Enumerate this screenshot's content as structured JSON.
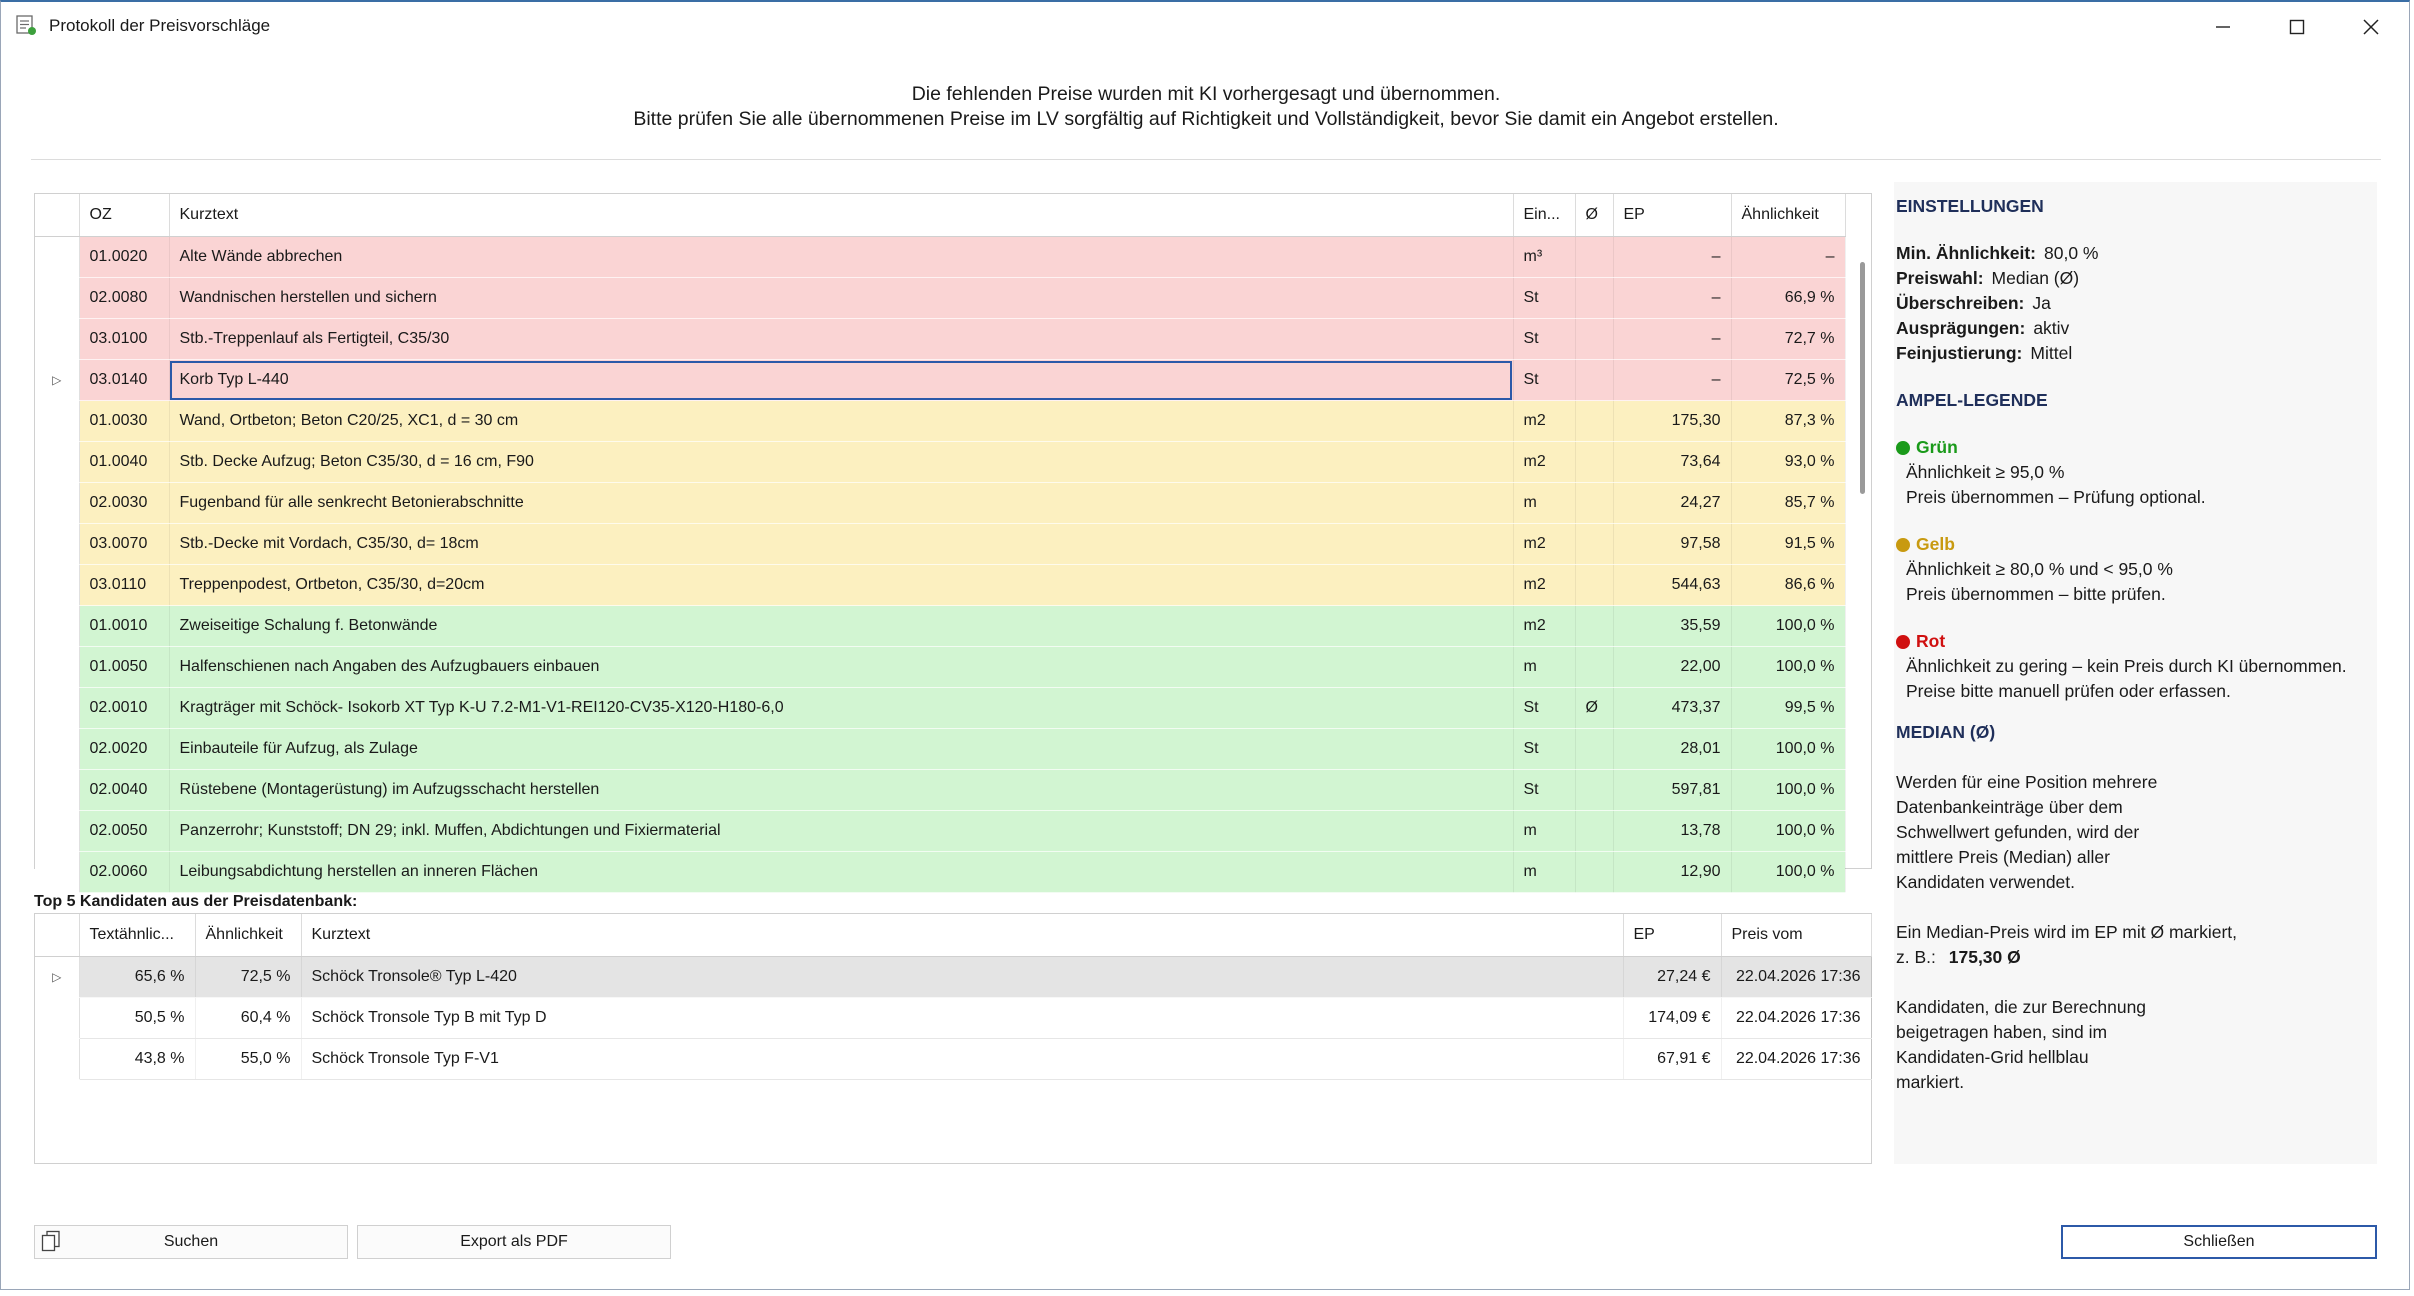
{
  "window": {
    "title": "Protokoll der Preisvorschläge"
  },
  "header": {
    "line1": "Die fehlenden Preise wurden mit KI vorhergesagt und übernommen.",
    "line2": "Bitte prüfen Sie alle übernommenen Preise im LV sorgfältig auf Richtigkeit und Vollständigkeit, bevor Sie damit ein Angebot erstellen."
  },
  "main_grid": {
    "columns": {
      "oz": "OZ",
      "kurztext": "Kurztext",
      "einheit": "Ein...",
      "median": "Ø",
      "ep": "EP",
      "aehnlichkeit": "Ähnlichkeit"
    },
    "rows": [
      {
        "status": "red",
        "oz": "01.0020",
        "kurztext": "Alte Wände abbrechen",
        "einheit": "m³",
        "median": "",
        "ep": "–",
        "aehnlichkeit": "–"
      },
      {
        "status": "red",
        "oz": "02.0080",
        "kurztext": "Wandnischen herstellen und sichern",
        "einheit": "St",
        "median": "",
        "ep": "–",
        "aehnlichkeit": "66,9 %"
      },
      {
        "status": "red",
        "oz": "03.0100",
        "kurztext": "Stb.-Treppenlauf als Fertigteil, C35/30",
        "einheit": "St",
        "median": "",
        "ep": "–",
        "aehnlichkeit": "72,7 %"
      },
      {
        "status": "red",
        "oz": "03.0140",
        "kurztext": "Korb Typ L-440",
        "einheit": "St",
        "median": "",
        "ep": "–",
        "aehnlichkeit": "72,5 %",
        "current": true
      },
      {
        "status": "yellow",
        "oz": "01.0030",
        "kurztext": "Wand, Ortbeton; Beton C20/25, XC1, d = 30 cm",
        "einheit": "m2",
        "median": "",
        "ep": "175,30",
        "aehnlichkeit": "87,3 %"
      },
      {
        "status": "yellow",
        "oz": "01.0040",
        "kurztext": "Stb. Decke Aufzug; Beton C35/30, d = 16 cm, F90",
        "einheit": "m2",
        "median": "",
        "ep": "73,64",
        "aehnlichkeit": "93,0 %"
      },
      {
        "status": "yellow",
        "oz": "02.0030",
        "kurztext": "Fugenband für alle senkrecht Betonierabschnitte",
        "einheit": "m",
        "median": "",
        "ep": "24,27",
        "aehnlichkeit": "85,7 %"
      },
      {
        "status": "yellow",
        "oz": "03.0070",
        "kurztext": "Stb.-Decke mit Vordach, C35/30, d= 18cm",
        "einheit": "m2",
        "median": "",
        "ep": "97,58",
        "aehnlichkeit": "91,5 %"
      },
      {
        "status": "yellow",
        "oz": "03.0110",
        "kurztext": "Treppenpodest, Ortbeton, C35/30, d=20cm",
        "einheit": "m2",
        "median": "",
        "ep": "544,63",
        "aehnlichkeit": "86,6 %"
      },
      {
        "status": "green",
        "oz": "01.0010",
        "kurztext": "Zweiseitige Schalung f. Betonwände",
        "einheit": "m2",
        "median": "",
        "ep": "35,59",
        "aehnlichkeit": "100,0 %"
      },
      {
        "status": "green",
        "oz": "01.0050",
        "kurztext": "Halfenschienen nach Angaben des Aufzugbauers einbauen",
        "einheit": "m",
        "median": "",
        "ep": "22,00",
        "aehnlichkeit": "100,0 %"
      },
      {
        "status": "green",
        "oz": "02.0010",
        "kurztext": "Kragträger mit Schöck- Isokorb XT Typ K-U 7.2-M1-V1-REI120-CV35-X120-H180-6,0",
        "einheit": "St",
        "median": "Ø",
        "ep": "473,37",
        "aehnlichkeit": "99,5 %"
      },
      {
        "status": "green",
        "oz": "02.0020",
        "kurztext": "Einbauteile für Aufzug, als Zulage",
        "einheit": "St",
        "median": "",
        "ep": "28,01",
        "aehnlichkeit": "100,0 %"
      },
      {
        "status": "green",
        "oz": "02.0040",
        "kurztext": "Rüstebene (Montagerüstung) im Aufzugsschacht herstellen",
        "einheit": "St",
        "median": "",
        "ep": "597,81",
        "aehnlichkeit": "100,0 %"
      },
      {
        "status": "green",
        "oz": "02.0050",
        "kurztext": "Panzerrohr; Kunststoff; DN 29; inkl. Muffen, Abdichtungen und Fixiermaterial",
        "einheit": "m",
        "median": "",
        "ep": "13,78",
        "aehnlichkeit": "100,0 %"
      },
      {
        "status": "green",
        "oz": "02.0060",
        "kurztext": "Leibungsabdichtung herstellen an inneren Flächen",
        "einheit": "m",
        "median": "",
        "ep": "12,90",
        "aehnlichkeit": "100,0 %"
      }
    ]
  },
  "candidates": {
    "label": "Top 5 Kandidaten aus der Preisdatenbank:",
    "columns": {
      "text_sim": "Textähnlic...",
      "aehnlichkeit": "Ähnlichkeit",
      "kurztext": "Kurztext",
      "ep": "EP",
      "preis_vom": "Preis vom"
    },
    "rows": [
      {
        "text_sim": "65,6 %",
        "aehnlichkeit": "72,5 %",
        "kurztext": "Schöck Tronsole® Typ L-420",
        "ep": "27,24 €",
        "preis_vom": "22.04.2026 17:36",
        "selected": true
      },
      {
        "text_sim": "50,5 %",
        "aehnlichkeit": "60,4 %",
        "kurztext": "Schöck Tronsole Typ B mit Typ D",
        "ep": "174,09 €",
        "preis_vom": "22.04.2026 17:36"
      },
      {
        "text_sim": "43,8 %",
        "aehnlichkeit": "55,0 %",
        "kurztext": "Schöck Tronsole Typ F-V1",
        "ep": "67,91 €",
        "preis_vom": "22.04.2026 17:36"
      }
    ]
  },
  "side": {
    "settings_title": "EINSTELLUNGEN",
    "settings": [
      {
        "key": "Min. Ähnlichkeit:",
        "value": "80,0 %"
      },
      {
        "key": "Preiswahl:",
        "value": "Median (Ø)"
      },
      {
        "key": "Überschreiben:",
        "value": "Ja"
      },
      {
        "key": "Ausprägungen:",
        "value": "aktiv"
      },
      {
        "key": "Feinjustierung:",
        "value": "Mittel"
      }
    ],
    "legend_title": "AMPEL-LEGENDE",
    "legend": [
      {
        "label": "Grün",
        "color": "#1a9a1a",
        "line1": "Ähnlichkeit ≥ 95,0 %",
        "line2": "Preis übernommen – Prüfung optional."
      },
      {
        "label": "Gelb",
        "color": "#c89a10",
        "line1": "Ähnlichkeit ≥ 80,0 % und < 95,0 %",
        "line2": "Preis übernommen – bitte prüfen."
      },
      {
        "label": "Rot",
        "color": "#d01010",
        "line1": "Ähnlichkeit zu gering – kein Preis durch KI übernommen.",
        "line2": "Preise bitte manuell prüfen oder erfassen."
      }
    ],
    "median_title": "MEDIAN  (Ø)",
    "median_p1": [
      "Werden für eine Position mehrere",
      "Datenbankeinträge über dem",
      "Schwellwert gefunden, wird der",
      "mittlere Preis (Median) aller",
      "Kandidaten verwendet."
    ],
    "median_p2_line1": "Ein Median-Preis wird im EP mit Ø markiert,",
    "median_p2_prefix": "z. B.:",
    "median_p2_example": "175,30 Ø",
    "median_p3": [
      "Kandidaten, die zur Berechnung",
      "beigetragen haben, sind im",
      "Kandidaten-Grid hellblau",
      "markiert."
    ]
  },
  "buttons": {
    "search": "Suchen",
    "export": "Export als PDF",
    "close": "Schließen"
  },
  "colors": {
    "red_row": "#fad4d4",
    "yellow_row": "#fcf0c0",
    "green_row": "#d2f5d2",
    "accent": "#2c59a8"
  }
}
